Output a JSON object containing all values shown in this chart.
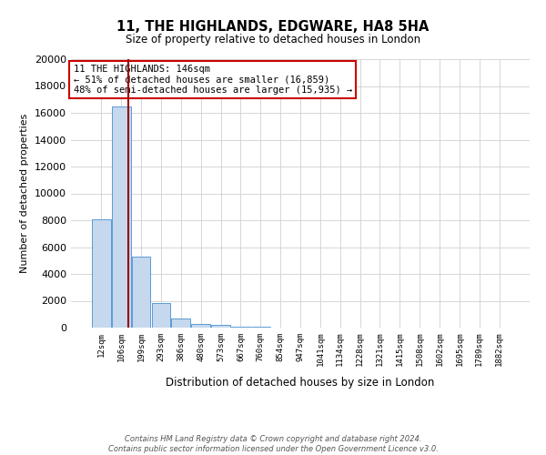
{
  "title": "11, THE HIGHLANDS, EDGWARE, HA8 5HA",
  "subtitle": "Size of property relative to detached houses in London",
  "xlabel": "Distribution of detached houses by size in London",
  "ylabel": "Number of detached properties",
  "categories": [
    "12sqm",
    "106sqm",
    "199sqm",
    "293sqm",
    "386sqm",
    "480sqm",
    "573sqm",
    "667sqm",
    "760sqm",
    "854sqm",
    "947sqm",
    "1041sqm",
    "1134sqm",
    "1228sqm",
    "1321sqm",
    "1415sqm",
    "1508sqm",
    "1602sqm",
    "1695sqm",
    "1789sqm",
    "1882sqm"
  ],
  "bar_values": [
    8100,
    16500,
    5300,
    1800,
    700,
    300,
    200,
    100,
    50,
    0,
    0,
    0,
    0,
    0,
    0,
    0,
    0,
    0,
    0,
    0,
    0
  ],
  "bar_color": "#c5d8ee",
  "bar_edge_color": "#5b9bd5",
  "ylim": [
    0,
    20000
  ],
  "yticks": [
    0,
    2000,
    4000,
    6000,
    8000,
    10000,
    12000,
    14000,
    16000,
    18000,
    20000
  ],
  "vline_x": 1.35,
  "vline_color": "#990000",
  "annotation_title": "11 THE HIGHLANDS: 146sqm",
  "annotation_line1": "← 51% of detached houses are smaller (16,859)",
  "annotation_line2": "48% of semi-detached houses are larger (15,935) →",
  "annotation_box_color": "#ffffff",
  "annotation_box_edge": "#cc0000",
  "footer1": "Contains HM Land Registry data © Crown copyright and database right 2024.",
  "footer2": "Contains public sector information licensed under the Open Government Licence v3.0.",
  "background_color": "#ffffff",
  "grid_color": "#d0d0d0"
}
